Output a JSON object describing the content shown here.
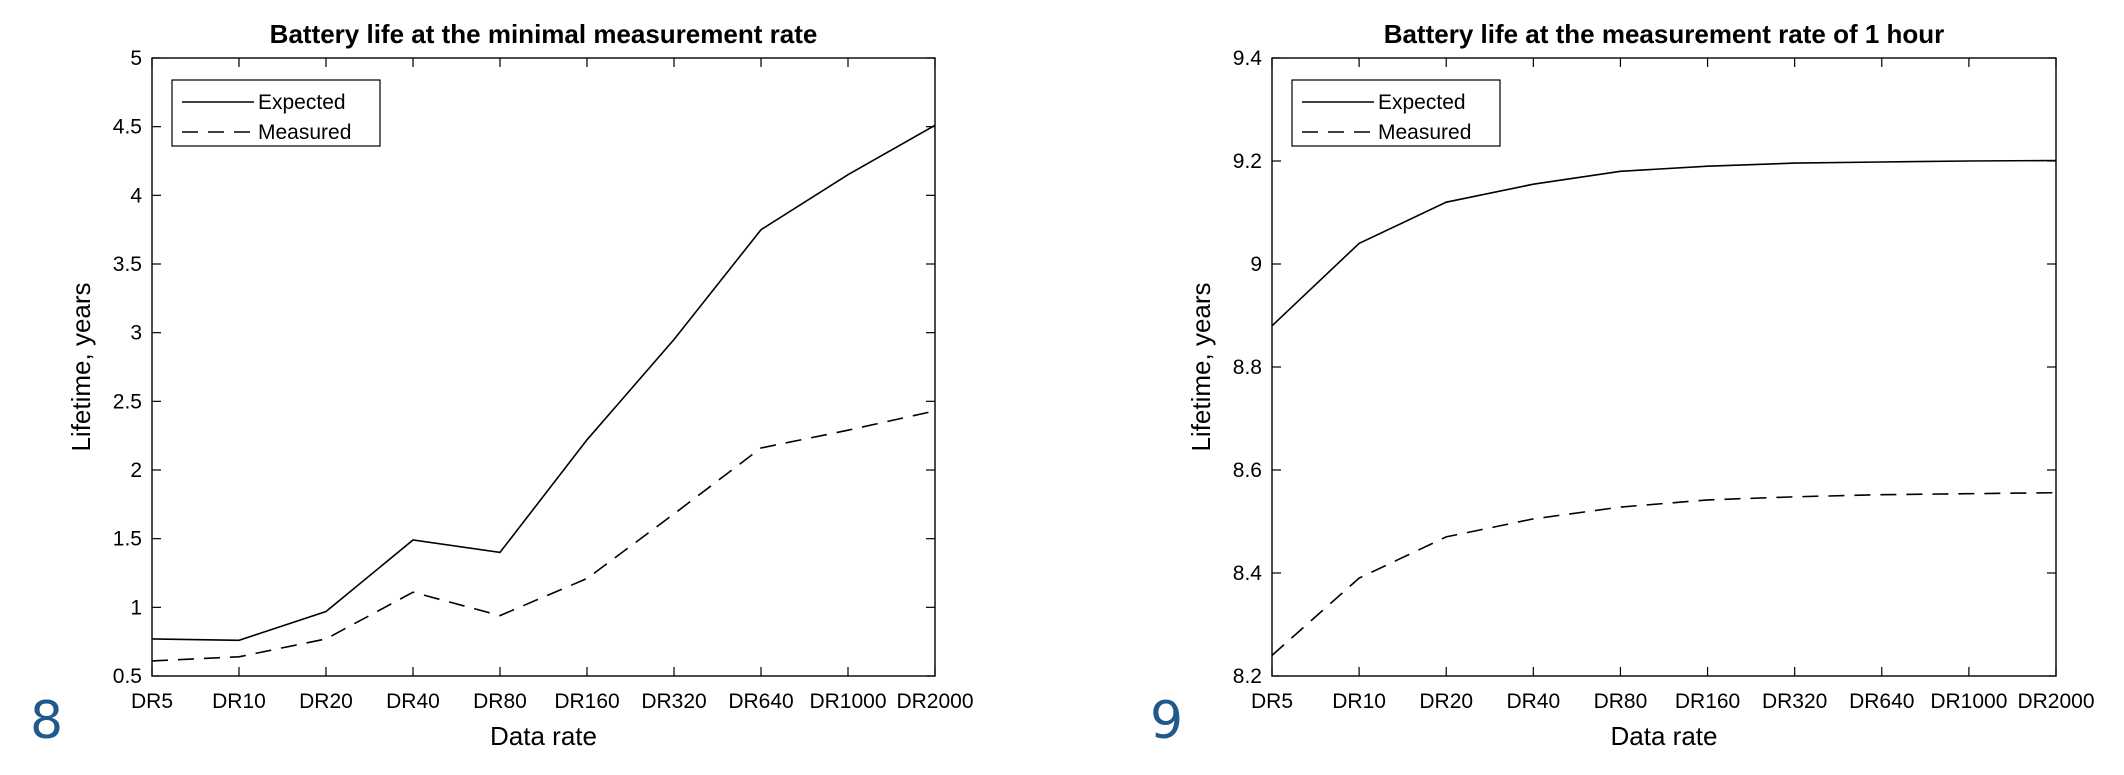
{
  "panel_labels": [
    "8",
    "9"
  ],
  "chart_data": [
    {
      "type": "line",
      "title": "Battery life at the minimal measurement rate",
      "xlabel": "Data rate",
      "ylabel": "Lifetime, years",
      "categories": [
        "DR5",
        "DR10",
        "DR20",
        "DR40",
        "DR80",
        "DR160",
        "DR320",
        "DR640",
        "DR1000",
        "DR2000"
      ],
      "ylim": [
        0.5,
        5
      ],
      "yticks": [
        0.5,
        1,
        1.5,
        2,
        2.5,
        3,
        3.5,
        4,
        4.5,
        5
      ],
      "ytick_labels": [
        "0.5",
        "1",
        "1.5",
        "2",
        "2.5",
        "3",
        "3.5",
        "4",
        "4.5",
        "5"
      ],
      "grid": false,
      "legend": "top-left",
      "series": [
        {
          "name": "Expected",
          "style": "solid",
          "values": [
            0.77,
            0.76,
            0.97,
            1.49,
            1.4,
            2.22,
            2.95,
            3.75,
            4.15,
            4.51
          ]
        },
        {
          "name": "Measured",
          "style": "dashed",
          "values": [
            0.61,
            0.64,
            0.77,
            1.11,
            0.94,
            1.21,
            1.68,
            2.16,
            2.29,
            2.43
          ]
        }
      ]
    },
    {
      "type": "line",
      "title": "Battery life at the measurement rate of 1 hour",
      "xlabel": "Data rate",
      "ylabel": "Lifetime, years",
      "categories": [
        "DR5",
        "DR10",
        "DR20",
        "DR40",
        "DR80",
        "DR160",
        "DR320",
        "DR640",
        "DR1000",
        "DR2000"
      ],
      "ylim": [
        8.2,
        9.4
      ],
      "yticks": [
        8.2,
        8.4,
        8.6,
        8.8,
        9.0,
        9.2,
        9.4
      ],
      "ytick_labels": [
        "8.2",
        "8.4",
        "8.6",
        "8.8",
        "9",
        "9.2",
        "9.4"
      ],
      "grid": false,
      "legend": "top-left",
      "series": [
        {
          "name": "Expected",
          "style": "solid",
          "values": [
            8.88,
            9.04,
            9.12,
            9.155,
            9.18,
            9.19,
            9.196,
            9.198,
            9.2,
            9.201
          ]
        },
        {
          "name": "Measured",
          "style": "dashed",
          "values": [
            8.24,
            8.39,
            8.47,
            8.505,
            8.528,
            8.542,
            8.548,
            8.552,
            8.554,
            8.556
          ]
        }
      ]
    }
  ]
}
